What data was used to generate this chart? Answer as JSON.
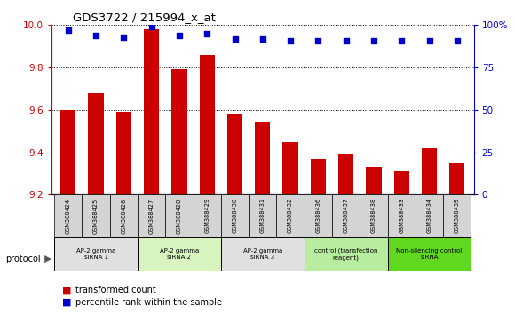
{
  "title": "GDS3722 / 215994_x_at",
  "samples": [
    "GSM388424",
    "GSM388425",
    "GSM388426",
    "GSM388427",
    "GSM388428",
    "GSM388429",
    "GSM388430",
    "GSM388431",
    "GSM388432",
    "GSM388436",
    "GSM388437",
    "GSM388438",
    "GSM388433",
    "GSM388434",
    "GSM388435"
  ],
  "bar_values": [
    9.6,
    9.68,
    9.59,
    9.98,
    9.79,
    9.86,
    9.58,
    9.54,
    9.45,
    9.37,
    9.39,
    9.33,
    9.31,
    9.42,
    9.35
  ],
  "dot_values": [
    97,
    94,
    93,
    99,
    94,
    95,
    92,
    92,
    91,
    91,
    91,
    91,
    91,
    91,
    91
  ],
  "ylim_left": [
    9.2,
    10.0
  ],
  "ylim_right": [
    0,
    100
  ],
  "yticks_left": [
    9.2,
    9.4,
    9.6,
    9.8,
    10.0
  ],
  "yticks_right": [
    0,
    25,
    50,
    75,
    100
  ],
  "ytick_labels_right": [
    "0",
    "25",
    "50",
    "75",
    "100%"
  ],
  "groups": [
    {
      "label": "AP-2 gamma\nsiRNA 1",
      "start": 0,
      "end": 3,
      "color": "#e0e0e0"
    },
    {
      "label": "AP-2 gamma\nsiRNA 2",
      "start": 3,
      "end": 6,
      "color": "#d8f5c0"
    },
    {
      "label": "AP-2 gamma\nsiRNA 3",
      "start": 6,
      "end": 9,
      "color": "#e0e0e0"
    },
    {
      "label": "control (transfection\nreagent)",
      "start": 9,
      "end": 12,
      "color": "#b8eda0"
    },
    {
      "label": "Non-silencing control\nsiRNA",
      "start": 12,
      "end": 15,
      "color": "#60d820"
    }
  ],
  "bar_color": "#cc0000",
  "dot_color": "#0000cc",
  "bar_bottom": 9.2,
  "legend_bar_label": "transformed count",
  "legend_dot_label": "percentile rank within the sample",
  "protocol_label": "protocol",
  "left_axis_color": "#cc0000",
  "right_axis_color": "#0000cc",
  "sample_box_color": "#d4d4d4"
}
